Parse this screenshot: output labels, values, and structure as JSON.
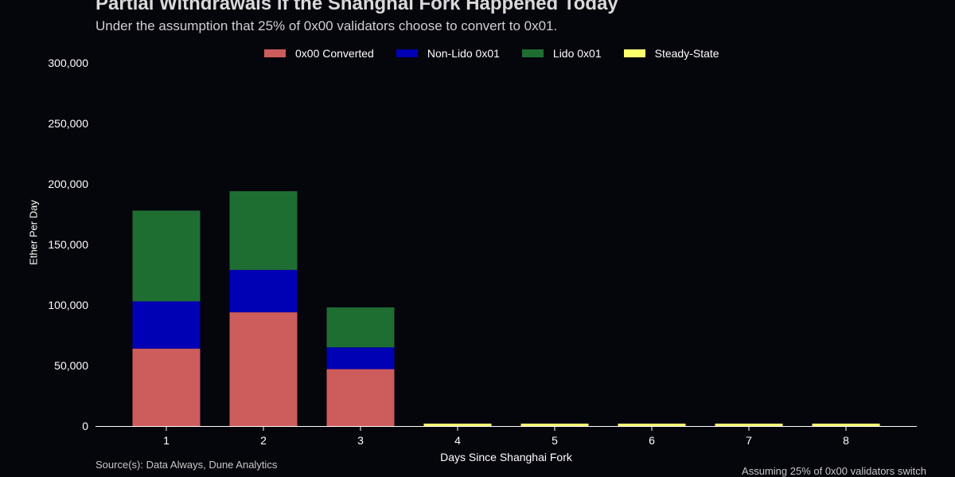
{
  "chart_data": {
    "type": "bar",
    "stacked": true,
    "title": "Partial Withdrawals if the Shanghai Fork Happened Today",
    "subtitle": "Under the assumption that 25% of 0x00 validators choose to convert to 0x01.",
    "xlabel": "Days Since Shanghai Fork",
    "ylabel": "Ether Per Day",
    "categories": [
      "1",
      "2",
      "3",
      "4",
      "5",
      "6",
      "7",
      "8"
    ],
    "ylim": [
      0,
      300000
    ],
    "yticks": [
      0,
      50000,
      100000,
      150000,
      200000,
      250000,
      300000
    ],
    "ytick_labels": [
      "0",
      "50,000",
      "100,000",
      "150,000",
      "200,000",
      "250,000",
      "300,000"
    ],
    "grid": false,
    "legend_position": "top-center",
    "series": [
      {
        "name": "0x00 Converted",
        "color": "#cd5c5c",
        "values": [
          64000,
          94000,
          47000,
          0,
          0,
          0,
          0,
          0
        ]
      },
      {
        "name": "Non-Lido 0x01",
        "color": "#0000b4",
        "values": [
          39000,
          35000,
          18000,
          0,
          0,
          0,
          0,
          0
        ]
      },
      {
        "name": "Lido 0x01",
        "color": "#1e6e32",
        "values": [
          75000,
          65000,
          33000,
          0,
          0,
          0,
          0,
          0
        ]
      },
      {
        "name": "Steady-State",
        "color": "#ffff6e",
        "values": [
          0,
          0,
          0,
          2000,
          2000,
          2000,
          2000,
          2000
        ]
      }
    ],
    "source": "Source(s): Data Always, Dune Analytics",
    "footnote": "Assuming 25% of 0x00 validators switch"
  }
}
